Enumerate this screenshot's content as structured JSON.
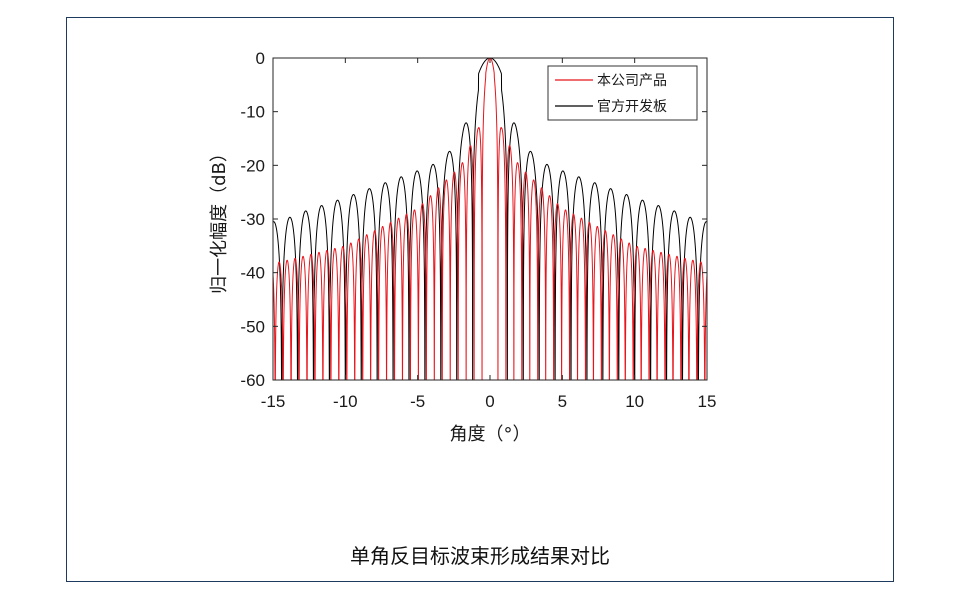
{
  "caption": "单角反目标波束形成结果对比",
  "chart_data": {
    "type": "line",
    "xlabel": "角度（°）",
    "ylabel": "归一化幅度（dB）",
    "xlim": [
      -15,
      15
    ],
    "ylim": [
      -60,
      0
    ],
    "xticks": [
      -15,
      -10,
      -5,
      0,
      5,
      10,
      15
    ],
    "yticks": [
      0,
      -10,
      -20,
      -30,
      -40,
      -50,
      -60
    ],
    "grid": false,
    "legend_position": "top-right",
    "series": [
      {
        "name": "本公司产品",
        "color": "#e8141b",
        "mainlobe_half_width_deg": 0.3,
        "first_null_deg": 0.55,
        "sidelobe_spacing_deg": 0.55,
        "sidelobe_peaks": [
          {
            "x": -14.5,
            "y": -38
          },
          {
            "x": -10,
            "y": -35
          },
          {
            "x": -5,
            "y": -28
          },
          {
            "x": -2,
            "y": -20
          },
          {
            "x": -0.8,
            "y": -13
          },
          {
            "x": 0,
            "y": 0
          },
          {
            "x": 0.8,
            "y": -13
          },
          {
            "x": 2,
            "y": -20
          },
          {
            "x": 5,
            "y": -28
          },
          {
            "x": 10,
            "y": -35
          },
          {
            "x": 14.5,
            "y": -38
          }
        ]
      },
      {
        "name": "官方开发板",
        "color": "#000000",
        "mainlobe_half_width_deg": 0.8,
        "first_null_deg": 1.2,
        "sidelobe_spacing_deg": 1.1,
        "sidelobe_peaks": [
          {
            "x": -14.5,
            "y": -30
          },
          {
            "x": -13.3,
            "y": -29
          },
          {
            "x": -10,
            "y": -26
          },
          {
            "x": -5,
            "y": -21
          },
          {
            "x": -3.2,
            "y": -19
          },
          {
            "x": -1.9,
            "y": -13.5
          },
          {
            "x": 0,
            "y": 0
          },
          {
            "x": 1.9,
            "y": -13.5
          },
          {
            "x": 3.2,
            "y": -19
          },
          {
            "x": 5,
            "y": -21
          },
          {
            "x": 10,
            "y": -26
          },
          {
            "x": 13.3,
            "y": -29
          },
          {
            "x": 14.5,
            "y": -30.5
          }
        ]
      }
    ]
  }
}
